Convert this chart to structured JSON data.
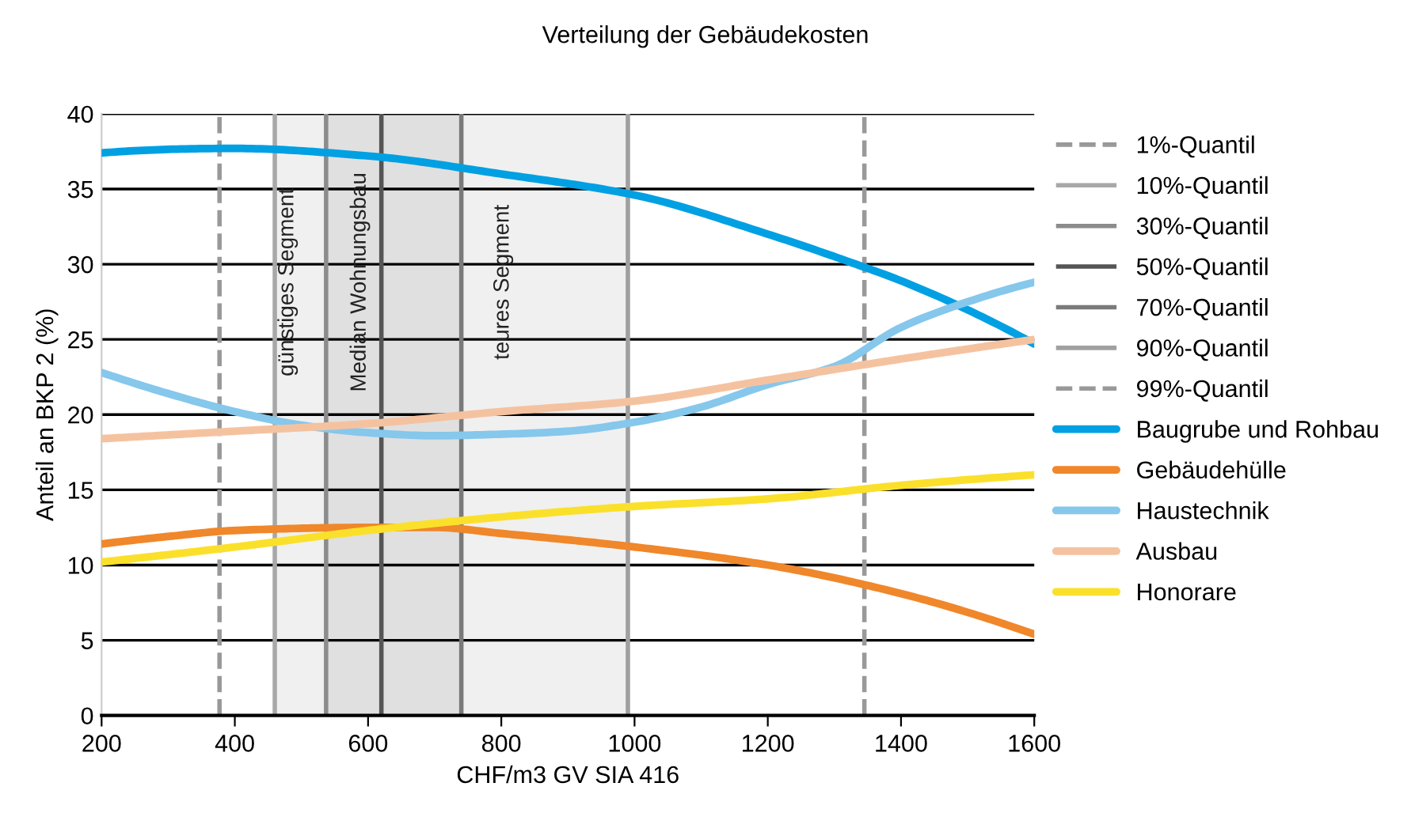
{
  "chart_data": {
    "type": "line",
    "title": "Verteilung der Gebäudekosten",
    "xlabel": "CHF/m3 GV SIA 416",
    "ylabel": "Anteil an BKP 2 (%)",
    "xlim": [
      200,
      1600
    ],
    "xticks": [
      200,
      400,
      600,
      800,
      1000,
      1200,
      1400,
      1600
    ],
    "ylim": [
      0,
      40
    ],
    "yticks": [
      0,
      5,
      10,
      15,
      20,
      25,
      30,
      35,
      40
    ],
    "grid": "y",
    "legend": "right",
    "line_style": "solid",
    "marker": "none",
    "bands": [
      {
        "axis": "x",
        "from": 460,
        "to": 537,
        "color": "#f0f0f0",
        "label": "günstiges Segment"
      },
      {
        "axis": "x",
        "from": 537,
        "to": 740,
        "color": "#e0e0e0",
        "label": "Median Wohnungsbau"
      },
      {
        "axis": "x",
        "from": 740,
        "to": 990,
        "color": "#f0f0f0",
        "label": "teures Segment"
      }
    ],
    "series": [
      {
        "name": "1%-Quantil",
        "color": "#999999",
        "line_style": "dashed",
        "x": [
          377,
          377
        ],
        "values": [
          0,
          40
        ]
      },
      {
        "name": "10%-Quantil",
        "color": "#a8a8a8",
        "line_style": "solid",
        "x": [
          460,
          460
        ],
        "values": [
          0,
          40
        ]
      },
      {
        "name": "30%-Quantil",
        "color": "#8c8c8c",
        "line_style": "solid",
        "x": [
          537,
          537
        ],
        "values": [
          0,
          40
        ]
      },
      {
        "name": "50%-Quantil",
        "color": "#555555",
        "line_style": "solid",
        "x": [
          620,
          620
        ],
        "values": [
          0,
          40
        ]
      },
      {
        "name": "70%-Quantil",
        "color": "#7a7a7a",
        "line_style": "solid",
        "x": [
          740,
          740
        ],
        "values": [
          0,
          40
        ]
      },
      {
        "name": "90%-Quantil",
        "color": "#a0a0a0",
        "line_style": "solid",
        "x": [
          990,
          990
        ],
        "values": [
          0,
          40
        ]
      },
      {
        "name": "99%-Quantil",
        "color": "#999999",
        "line_style": "dashed",
        "x": [
          1345,
          1345
        ],
        "values": [
          0,
          40
        ]
      },
      {
        "name": "Baugrube und Rohbau",
        "color": "#00a0e3",
        "x": [
          200,
          400,
          600,
          800,
          1000,
          1200,
          1345,
          1400,
          1600
        ],
        "values": [
          37.4,
          37.7,
          37.2,
          36.0,
          34.6,
          32.0,
          29.8,
          28.9,
          24.7
        ]
      },
      {
        "name": "Gebäudehülle",
        "color": "#f0872a",
        "x": [
          200,
          300,
          400,
          600,
          700,
          800,
          1000,
          1200,
          1400,
          1600
        ],
        "values": [
          11.4,
          11.9,
          12.3,
          12.5,
          12.5,
          12.1,
          11.2,
          10.0,
          8.1,
          5.4
        ]
      },
      {
        "name": "Haustechnik",
        "color": "#86c7ec",
        "x": [
          200,
          300,
          400,
          500,
          600,
          700,
          800,
          900,
          1000,
          1100,
          1200,
          1300,
          1400,
          1500,
          1600
        ],
        "values": [
          22.8,
          21.4,
          20.2,
          19.3,
          18.8,
          18.6,
          18.7,
          18.9,
          19.5,
          20.5,
          22.0,
          23.2,
          25.8,
          27.5,
          28.8
        ]
      },
      {
        "name": "Ausbau",
        "color": "#f5c2a0",
        "x": [
          200,
          400,
          600,
          800,
          1000,
          1200,
          1400,
          1600
        ],
        "values": [
          18.4,
          18.9,
          19.4,
          20.2,
          20.9,
          22.3,
          23.7,
          25.0
        ]
      },
      {
        "name": "Honorare",
        "color": "#fbe02b",
        "x": [
          200,
          400,
          600,
          800,
          1000,
          1200,
          1400,
          1600
        ],
        "values": [
          10.2,
          11.2,
          12.3,
          13.2,
          13.9,
          14.4,
          15.3,
          16.0
        ]
      }
    ]
  }
}
